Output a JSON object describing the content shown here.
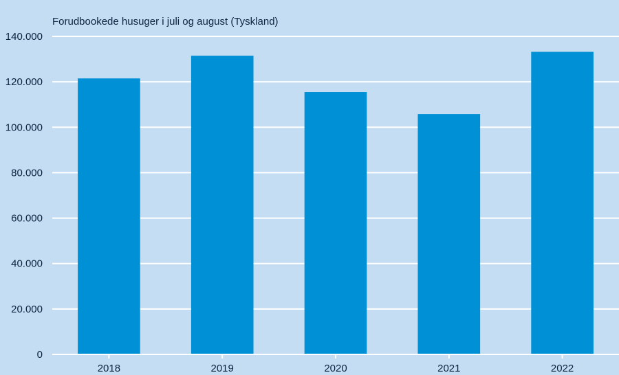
{
  "chart_data": {
    "type": "bar",
    "title": "",
    "ylabel": "Forudbookede husuger i juli og august (Tyskland)",
    "xlabel": "",
    "categories": [
      "2018",
      "2019",
      "2020",
      "2021",
      "2022"
    ],
    "values": [
      121500,
      131500,
      115500,
      105800,
      133200
    ],
    "ylim": [
      0,
      140000
    ],
    "yticks": [
      0,
      20000,
      40000,
      60000,
      80000,
      100000,
      120000,
      140000
    ],
    "ytick_labels": [
      "0",
      "20.000",
      "40.000",
      "60.000",
      "80.000",
      "100.000",
      "120.000",
      "140.000"
    ],
    "grid": true,
    "legend": "none",
    "colors": {
      "background": "#c5ddf2",
      "bar": "#0090d5",
      "grid": "#ffffff",
      "axis": "#ffffff",
      "text": "#0c2340"
    }
  }
}
